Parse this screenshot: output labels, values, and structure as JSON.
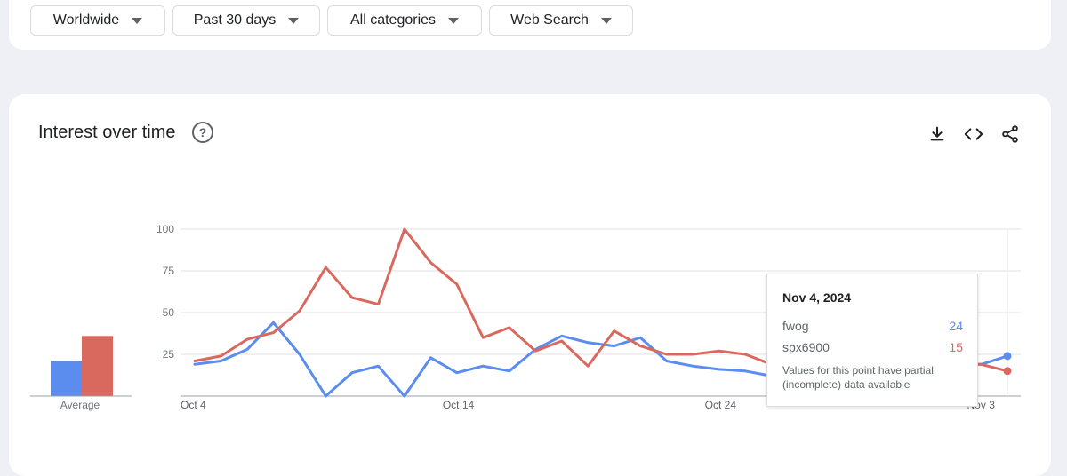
{
  "filters": [
    {
      "label": "Worldwide"
    },
    {
      "label": "Past 30 days"
    },
    {
      "label": "All categories"
    },
    {
      "label": "Web Search"
    }
  ],
  "card": {
    "title": "Interest over time",
    "help_glyph": "?"
  },
  "toolbar": {
    "icons": [
      "download-icon",
      "embed-code-icon",
      "share-icon"
    ]
  },
  "average_label": "Average",
  "tooltip": {
    "date": "Nov 4, 2024",
    "rows": [
      {
        "name": "fwog",
        "value": "24"
      },
      {
        "name": "spx6900",
        "value": "15"
      }
    ],
    "note": "Values for this point have partial (incomplete) data available"
  },
  "colors": {
    "fwog": "#5b8def",
    "spx6900": "#d9695f",
    "grid": "#e0e0e0"
  },
  "chart_data": {
    "type": "line",
    "x_labels": [
      "Oct 4",
      "Oct 14",
      "Oct 24",
      "Nov 3"
    ],
    "y_ticks": [
      25,
      50,
      75,
      100
    ],
    "ylim": [
      0,
      100
    ],
    "grid": true,
    "x": [
      "Oct 4",
      "Oct 5",
      "Oct 6",
      "Oct 7",
      "Oct 8",
      "Oct 9",
      "Oct 10",
      "Oct 11",
      "Oct 12",
      "Oct 13",
      "Oct 14",
      "Oct 15",
      "Oct 16",
      "Oct 17",
      "Oct 18",
      "Oct 19",
      "Oct 20",
      "Oct 21",
      "Oct 22",
      "Oct 23",
      "Oct 24",
      "Oct 25",
      "Oct 26",
      "Oct 27",
      "Oct 28",
      "Oct 29",
      "Oct 30",
      "Oct 31",
      "Nov 1",
      "Nov 2",
      "Nov 3",
      "Nov 4"
    ],
    "series": [
      {
        "name": "fwog",
        "color": "#5b8def",
        "values": [
          19,
          21,
          28,
          44,
          25,
          0,
          14,
          18,
          0,
          23,
          14,
          18,
          15,
          28,
          36,
          32,
          30,
          35,
          21,
          18,
          16,
          15,
          12,
          12,
          15,
          28,
          26,
          27,
          24,
          18,
          19,
          24
        ]
      },
      {
        "name": "spx6900",
        "color": "#d9695f",
        "values": [
          21,
          24,
          34,
          38,
          51,
          77,
          59,
          55,
          100,
          80,
          67,
          35,
          41,
          27,
          33,
          18,
          39,
          30,
          25,
          25,
          27,
          25,
          19,
          21,
          26,
          32,
          32,
          26,
          22,
          20,
          19,
          15
        ]
      }
    ],
    "average": [
      {
        "name": "fwog",
        "value": 21
      },
      {
        "name": "spx6900",
        "value": 36
      }
    ]
  }
}
